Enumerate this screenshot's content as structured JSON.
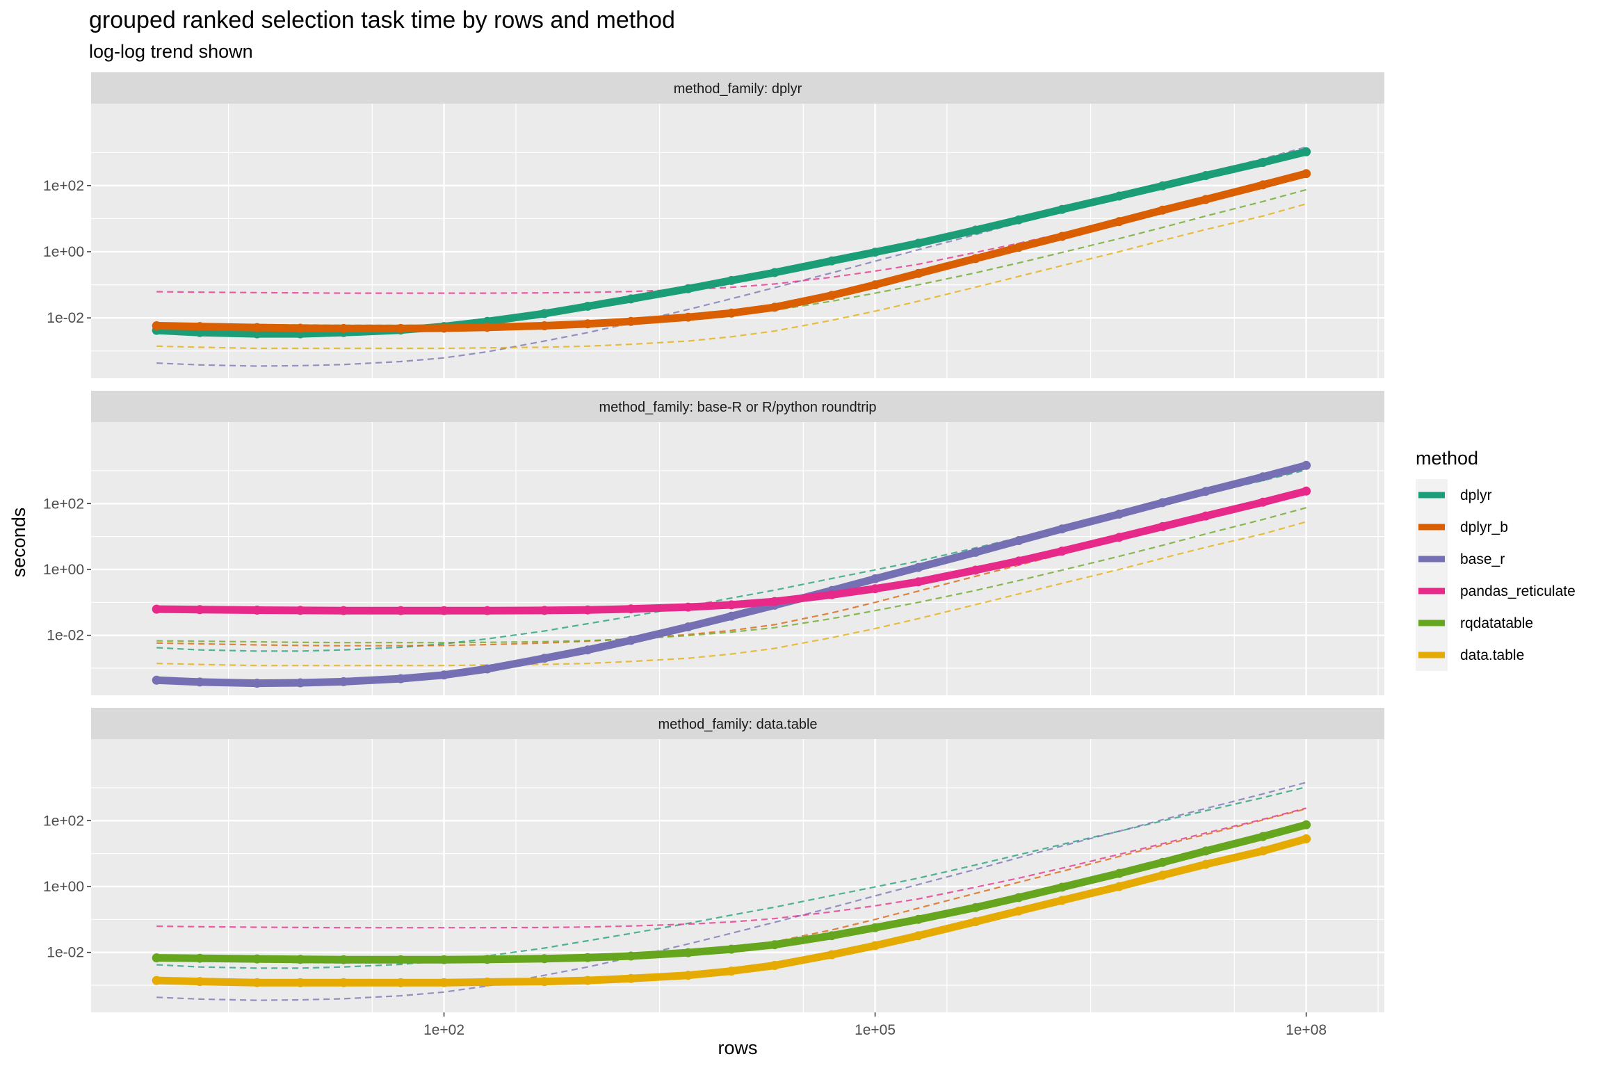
{
  "chart_data": {
    "type": "line",
    "title": "grouped ranked selection task time by rows and method",
    "subtitle": "log-log trend shown",
    "xlabel": "rows",
    "ylabel": "seconds",
    "x_scale": "log10",
    "y_scale": "log10",
    "x_ticks": [
      {
        "value": 100,
        "label": "1e+02"
      },
      {
        "value": 100000,
        "label": "1e+05"
      },
      {
        "value": 100000000,
        "label": "1e+08"
      }
    ],
    "y_ticks": [
      {
        "value": 0.01,
        "label": "1e-02"
      },
      {
        "value": 1,
        "label": "1e+00"
      },
      {
        "value": 100,
        "label": "1e+02"
      }
    ],
    "xlim": [
      0.35,
      350000000
    ],
    "ylim": [
      0.00015,
      30000
    ],
    "legend": {
      "title": "method",
      "placement": "right",
      "items": [
        {
          "name": "dplyr",
          "color": "#1B9E77"
        },
        {
          "name": "dplyr_b",
          "color": "#D95F02"
        },
        {
          "name": "base_r",
          "color": "#7570B3"
        },
        {
          "name": "pandas_reticulate",
          "color": "#E7298A"
        },
        {
          "name": "rqdatatable",
          "color": "#66A61E"
        },
        {
          "name": "data.table",
          "color": "#E6AB02"
        }
      ]
    },
    "x": [
      1,
      2,
      5,
      10,
      20,
      50,
      100,
      200,
      500,
      1000,
      2000,
      5000,
      10000,
      20000,
      50000,
      100000,
      200000,
      500000,
      1000000,
      2000000,
      5000000,
      10000000,
      20000000,
      50000000,
      100000000
    ],
    "series": [
      {
        "name": "dplyr",
        "values": [
          0.0042,
          0.0036,
          0.0033,
          0.0033,
          0.0036,
          0.0043,
          0.0055,
          0.0078,
          0.0135,
          0.0225,
          0.0375,
          0.076,
          0.135,
          0.235,
          0.53,
          0.97,
          1.8,
          4.5,
          9.2,
          19,
          48,
          98,
          200,
          500,
          1050
        ]
      },
      {
        "name": "dplyr_b",
        "values": [
          0.0058,
          0.0055,
          0.0051,
          0.0049,
          0.0048,
          0.0048,
          0.0049,
          0.0052,
          0.0058,
          0.0066,
          0.0078,
          0.0105,
          0.014,
          0.021,
          0.048,
          0.1,
          0.22,
          0.62,
          1.35,
          2.9,
          8.2,
          18,
          38,
          105,
          230
        ]
      },
      {
        "name": "base_r",
        "values": [
          0.00043,
          0.00038,
          0.00035,
          0.00036,
          0.00039,
          0.00048,
          0.00062,
          0.00095,
          0.002,
          0.0036,
          0.007,
          0.018,
          0.038,
          0.082,
          0.23,
          0.52,
          1.15,
          3.3,
          7.5,
          17,
          48,
          107,
          235,
          650,
          1450
        ]
      },
      {
        "name": "pandas_reticulate",
        "values": [
          0.062,
          0.06,
          0.058,
          0.057,
          0.056,
          0.056,
          0.056,
          0.056,
          0.057,
          0.059,
          0.063,
          0.072,
          0.084,
          0.106,
          0.17,
          0.26,
          0.42,
          0.95,
          1.8,
          3.6,
          9.5,
          20,
          42,
          110,
          240
        ]
      },
      {
        "name": "rqdatatable",
        "values": [
          0.0068,
          0.0066,
          0.0063,
          0.0061,
          0.006,
          0.006,
          0.006,
          0.0061,
          0.0064,
          0.0069,
          0.0077,
          0.0098,
          0.0125,
          0.017,
          0.032,
          0.056,
          0.1,
          0.23,
          0.46,
          0.95,
          2.5,
          5.4,
          12,
          33,
          75
        ]
      },
      {
        "name": "data.table",
        "values": [
          0.0014,
          0.0013,
          0.0012,
          0.0012,
          0.0012,
          0.0012,
          0.0012,
          0.00125,
          0.0013,
          0.0014,
          0.0016,
          0.002,
          0.0027,
          0.004,
          0.0085,
          0.016,
          0.032,
          0.085,
          0.18,
          0.38,
          1.0,
          2.2,
          4.7,
          12,
          28
        ]
      }
    ],
    "panels": [
      {
        "strip": "method_family: dplyr",
        "series": [
          "dplyr",
          "dplyr_b"
        ]
      },
      {
        "strip": "method_family: base-R or R/python roundtrip",
        "series": [
          "base_r",
          "pandas_reticulate"
        ]
      },
      {
        "strip": "method_family: data.table",
        "series": [
          "rqdatatable",
          "data.table"
        ]
      }
    ],
    "grid": true
  }
}
